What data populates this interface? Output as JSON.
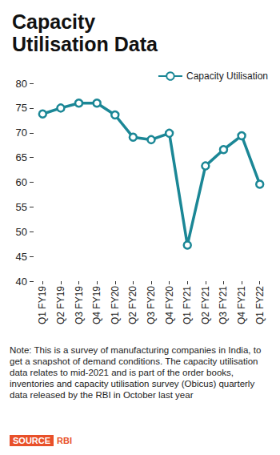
{
  "chart_data": {
    "type": "line",
    "title": "Capacity Utilisation Data",
    "categories": [
      "Q1 FY19",
      "Q2 FY19",
      "Q3 FY19",
      "Q4 FY19",
      "Q1 FY20",
      "Q2 FY20",
      "Q3 FY20",
      "Q4 FY20",
      "Q1 FY21",
      "Q2 FY21",
      "Q3 FY21",
      "Q4 FY21",
      "Q1 FY22"
    ],
    "series": [
      {
        "name": "Capacity Utilisation",
        "color": "#1b8796",
        "marker": "circle",
        "values": [
          73.8,
          75,
          76,
          76,
          73.6,
          69.1,
          68.6,
          69.9,
          47.3,
          63.3,
          66.6,
          69.4,
          59.6
        ]
      }
    ],
    "ylim": [
      40,
      80
    ],
    "yticks": [
      40,
      45,
      50,
      55,
      60,
      65,
      70,
      75,
      80
    ],
    "grid": false,
    "legend": "top right",
    "note": "Note: This is a survey of manufacturing companies in India, to get a snapshot of demand conditions. The capacity utilisation data relates to mid-2021 and is part of the order books, inventories and capacity utilisation survey (Obicus) quarterly data released by the RBI in October last year",
    "source_label": "SOURCE",
    "source": "RBI"
  }
}
